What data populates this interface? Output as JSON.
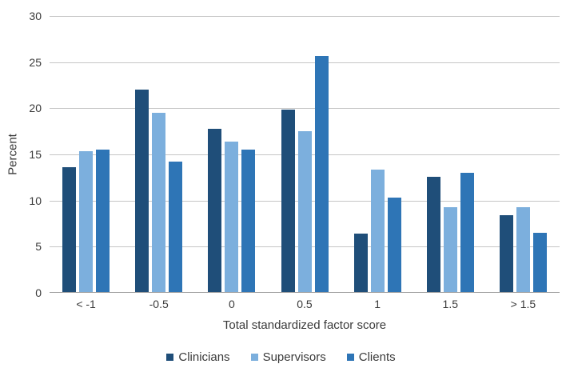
{
  "chart_data": {
    "type": "bar",
    "title": "",
    "categories": [
      "< -1",
      "-0.5",
      "0",
      "0.5",
      "1",
      "1.5",
      "> 1.5"
    ],
    "series": [
      {
        "name": "Clinicians",
        "color": "#1F4E79",
        "values": [
          13.5,
          21.9,
          17.7,
          19.8,
          6.3,
          12.5,
          8.3
        ]
      },
      {
        "name": "Supervisors",
        "color": "#7CAFDD",
        "values": [
          15.3,
          19.4,
          16.3,
          17.4,
          13.3,
          9.2,
          9.2
        ]
      },
      {
        "name": "Clients",
        "color": "#2E75B6",
        "values": [
          15.4,
          14.1,
          15.4,
          25.6,
          10.2,
          12.9,
          6.4
        ]
      }
    ],
    "xlabel": "Total standardized factor score",
    "ylabel": "Percent",
    "ylim": [
      0,
      30
    ],
    "yticks": [
      0,
      5,
      10,
      15,
      20,
      25,
      30
    ],
    "grid": true,
    "legend_position": "bottom"
  },
  "style": {
    "gridline_color": "#c6c6c6",
    "axis_line_color": "#9e9e9e",
    "text_color": "#3a3a3a",
    "background": "#ffffff"
  }
}
